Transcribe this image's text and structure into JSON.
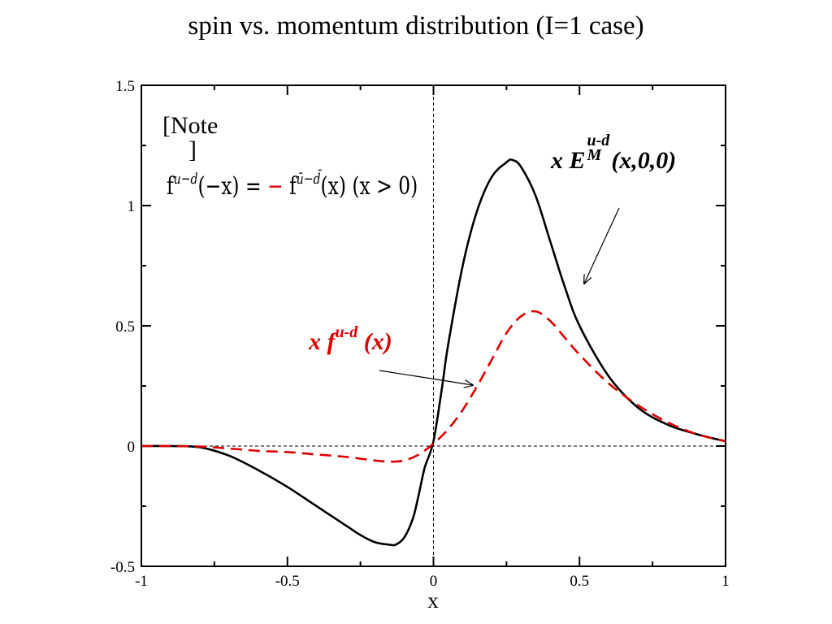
{
  "chart_data": {
    "type": "line",
    "title": "spin vs. momentum distribution (I=1 case)",
    "xlabel": "x",
    "ylabel": "",
    "xlim": [
      -1,
      1
    ],
    "ylim": [
      -0.5,
      1.5
    ],
    "x_ticks": [
      "-1",
      "-0.5",
      "0",
      "0.5",
      "1"
    ],
    "y_ticks": [
      "-0.5",
      "0",
      "0.5",
      "1",
      "1.5"
    ],
    "grid": false,
    "series": [
      {
        "name": "x E_M^{u-d}(x,0,0)",
        "color": "#000000",
        "style": "solid",
        "x": [
          -1,
          -0.9,
          -0.8,
          -0.7,
          -0.6,
          -0.5,
          -0.4,
          -0.3,
          -0.25,
          -0.2,
          -0.15,
          -0.13,
          -0.1,
          -0.07,
          -0.05,
          -0.03,
          0,
          0.03,
          0.05,
          0.1,
          0.15,
          0.2,
          0.25,
          0.27,
          0.3,
          0.35,
          0.4,
          0.45,
          0.5,
          0.6,
          0.7,
          0.8,
          0.9,
          1
        ],
        "y": [
          0,
          0,
          -0.005,
          -0.04,
          -0.1,
          -0.17,
          -0.25,
          -0.33,
          -0.37,
          -0.4,
          -0.41,
          -0.41,
          -0.38,
          -0.3,
          -0.2,
          -0.09,
          0.02,
          0.25,
          0.42,
          0.75,
          0.98,
          1.12,
          1.18,
          1.19,
          1.16,
          1.04,
          0.85,
          0.66,
          0.5,
          0.29,
          0.16,
          0.09,
          0.05,
          0.02
        ]
      },
      {
        "name": "x f^{u-d}(x)",
        "color": "#e00000",
        "style": "dashed",
        "x": [
          -1,
          -0.9,
          -0.8,
          -0.7,
          -0.6,
          -0.5,
          -0.4,
          -0.3,
          -0.2,
          -0.15,
          -0.1,
          -0.05,
          0,
          0.05,
          0.1,
          0.15,
          0.2,
          0.25,
          0.3,
          0.35,
          0.4,
          0.45,
          0.5,
          0.6,
          0.7,
          0.8,
          0.9,
          1
        ],
        "y": [
          0,
          0,
          -0.002,
          -0.01,
          -0.02,
          -0.025,
          -0.035,
          -0.045,
          -0.06,
          -0.065,
          -0.06,
          -0.035,
          0.01,
          0.07,
          0.15,
          0.25,
          0.36,
          0.47,
          0.54,
          0.56,
          0.52,
          0.45,
          0.38,
          0.26,
          0.17,
          0.1,
          0.05,
          0.02
        ]
      }
    ],
    "annotations": {
      "note_open": "[Note",
      "note_close": "]",
      "formula_f1": "f",
      "formula_sup1": "u−d",
      "formula_arg1": "(−x) = ",
      "formula_minus": "−",
      "formula_f2": " f",
      "formula_sup2": "ū−d̄",
      "formula_arg2": "(x)  (x > 0)",
      "e_label_prefix": "x E",
      "e_label_sup": "u-d",
      "e_label_sub": "M",
      "e_label_args": "(x,0,0)",
      "f_label_prefix": "x f",
      "f_label_sup": "u-d",
      "f_label_args": " (x)"
    }
  }
}
